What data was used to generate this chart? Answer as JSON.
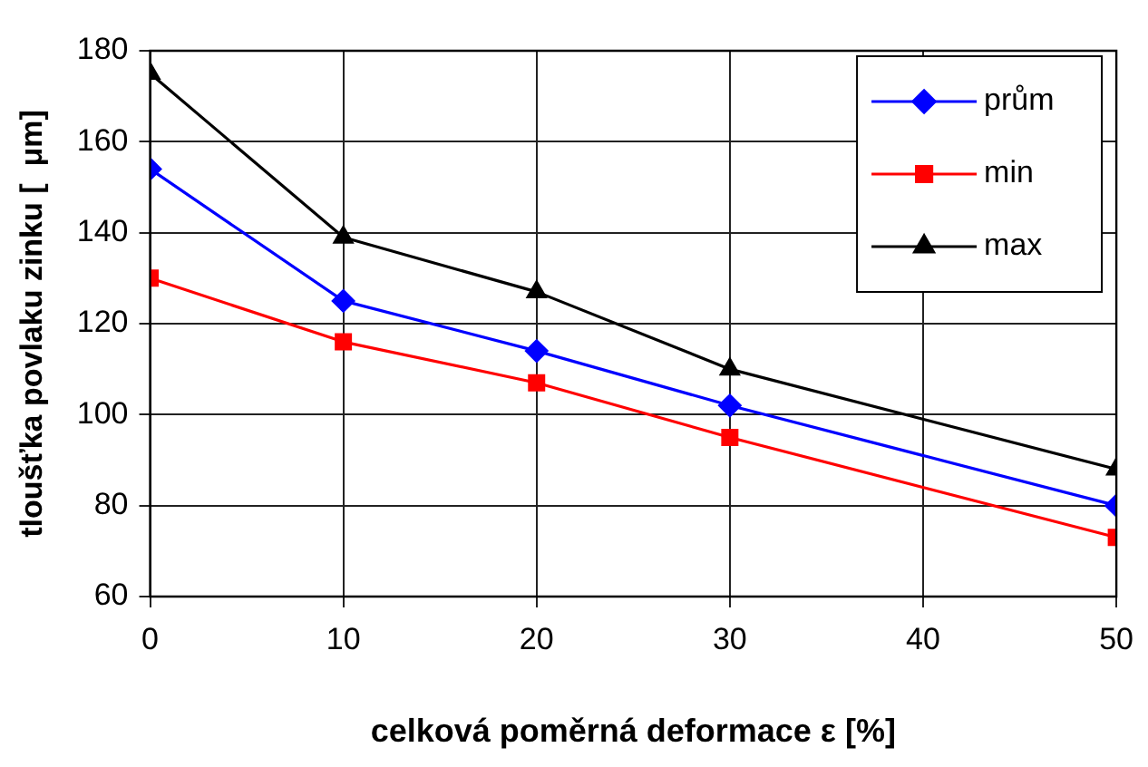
{
  "chart_data": {
    "type": "line",
    "xlabel": "celková poměrná deformace ε [%]",
    "ylabel": "tloušťka povlaku zinku [  μm]",
    "x": [
      0,
      10,
      20,
      30,
      50
    ],
    "series": [
      {
        "name": "prům",
        "color": "#0000ff",
        "marker": "diamond",
        "values": [
          154,
          125,
          114,
          102,
          80
        ]
      },
      {
        "name": "min",
        "color": "#ff0000",
        "marker": "square",
        "values": [
          130,
          116,
          107,
          95,
          73
        ]
      },
      {
        "name": "max",
        "color": "#000000",
        "marker": "triangle",
        "values": [
          175,
          139,
          127,
          110,
          88
        ]
      }
    ],
    "xlim": [
      0,
      50
    ],
    "xticks": [
      0,
      10,
      20,
      30,
      40,
      50
    ],
    "ylim": [
      60,
      180
    ],
    "yticks": [
      60,
      80,
      100,
      120,
      140,
      160,
      180
    ],
    "grid": true,
    "legend": "top right",
    "line_style": "solid"
  }
}
